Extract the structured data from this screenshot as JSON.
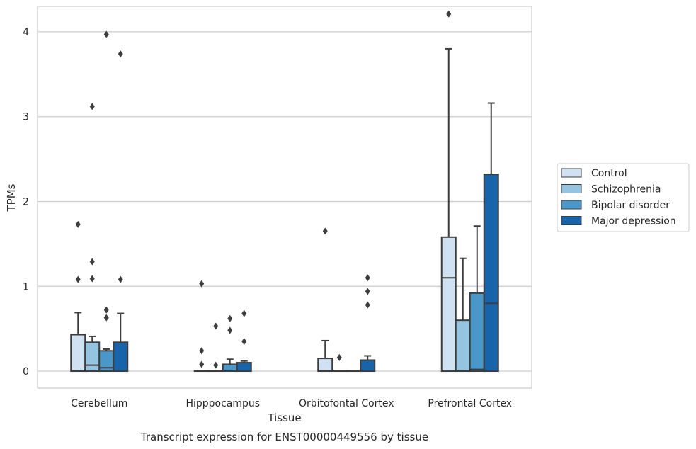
{
  "chart_data": {
    "type": "box",
    "title": "",
    "caption": "Transcript expression for ENST00000449556 by tissue",
    "xlabel": "Tissue",
    "ylabel": "TPMs",
    "ylim": [
      -0.2,
      4.3
    ],
    "yticks": [
      0,
      1,
      2,
      3,
      4
    ],
    "grid": "horizontal",
    "legend_position": "right",
    "categories": [
      "Cerebellum",
      "Hipppocampus",
      "Orbitofontal Cortex",
      "Prefrontal Cortex"
    ],
    "series": [
      {
        "name": "Control",
        "color": "#d0e1f2",
        "boxes": [
          {
            "q1": 0,
            "median": 0,
            "q3": 0.43,
            "whisker_low": 0,
            "whisker_high": 0.69,
            "outliers": [
              1.08,
              1.73
            ]
          },
          {
            "q1": 0,
            "median": 0,
            "q3": 0,
            "whisker_low": 0,
            "whisker_high": 0,
            "outliers": [
              0.08,
              0.24,
              1.03
            ]
          },
          {
            "q1": 0,
            "median": 0,
            "q3": 0.15,
            "whisker_low": 0,
            "whisker_high": 0.36,
            "outliers": [
              1.65
            ]
          },
          {
            "q1": 0,
            "median": 1.1,
            "q3": 1.58,
            "whisker_low": 0,
            "whisker_high": 3.8,
            "outliers": [
              4.21
            ]
          }
        ]
      },
      {
        "name": "Schizophrenia",
        "color": "#94c4df",
        "boxes": [
          {
            "q1": 0,
            "median": 0.07,
            "q3": 0.34,
            "whisker_low": 0,
            "whisker_high": 0.41,
            "outliers": [
              1.09,
              1.29,
              3.12
            ]
          },
          {
            "q1": 0,
            "median": 0,
            "q3": 0,
            "whisker_low": 0,
            "whisker_high": 0,
            "outliers": [
              0.07,
              0.53
            ]
          },
          {
            "q1": 0,
            "median": 0,
            "q3": 0,
            "whisker_low": 0,
            "whisker_high": 0,
            "outliers": [
              0.16
            ]
          },
          {
            "q1": 0,
            "median": 0,
            "q3": 0.6,
            "whisker_low": 0,
            "whisker_high": 1.33,
            "outliers": []
          }
        ]
      },
      {
        "name": "Bipolar disorder",
        "color": "#4a98c9",
        "boxes": [
          {
            "q1": 0,
            "median": 0.04,
            "q3": 0.24,
            "whisker_low": 0,
            "whisker_high": 0.26,
            "outliers": [
              0.63,
              0.72,
              3.97
            ]
          },
          {
            "q1": 0,
            "median": 0,
            "q3": 0.08,
            "whisker_low": 0,
            "whisker_high": 0.14,
            "outliers": [
              0.48,
              0.62
            ]
          },
          {
            "q1": 0,
            "median": 0,
            "q3": 0,
            "whisker_low": 0,
            "whisker_high": 0,
            "outliers": []
          },
          {
            "q1": 0,
            "median": 0.02,
            "q3": 0.92,
            "whisker_low": 0,
            "whisker_high": 1.71,
            "outliers": []
          }
        ]
      },
      {
        "name": "Major depression",
        "color": "#1764ab",
        "boxes": [
          {
            "q1": 0,
            "median": 0,
            "q3": 0.34,
            "whisker_low": 0,
            "whisker_high": 0.68,
            "outliers": [
              1.08,
              3.74
            ]
          },
          {
            "q1": 0,
            "median": 0,
            "q3": 0.1,
            "whisker_low": 0,
            "whisker_high": 0.12,
            "outliers": [
              0.35,
              0.68
            ]
          },
          {
            "q1": 0,
            "median": 0,
            "q3": 0.13,
            "whisker_low": 0,
            "whisker_high": 0.18,
            "outliers": [
              0.78,
              0.94,
              1.1
            ]
          },
          {
            "q1": 0,
            "median": 0.8,
            "q3": 2.32,
            "whisker_low": 0,
            "whisker_high": 3.16,
            "outliers": []
          }
        ]
      }
    ]
  }
}
